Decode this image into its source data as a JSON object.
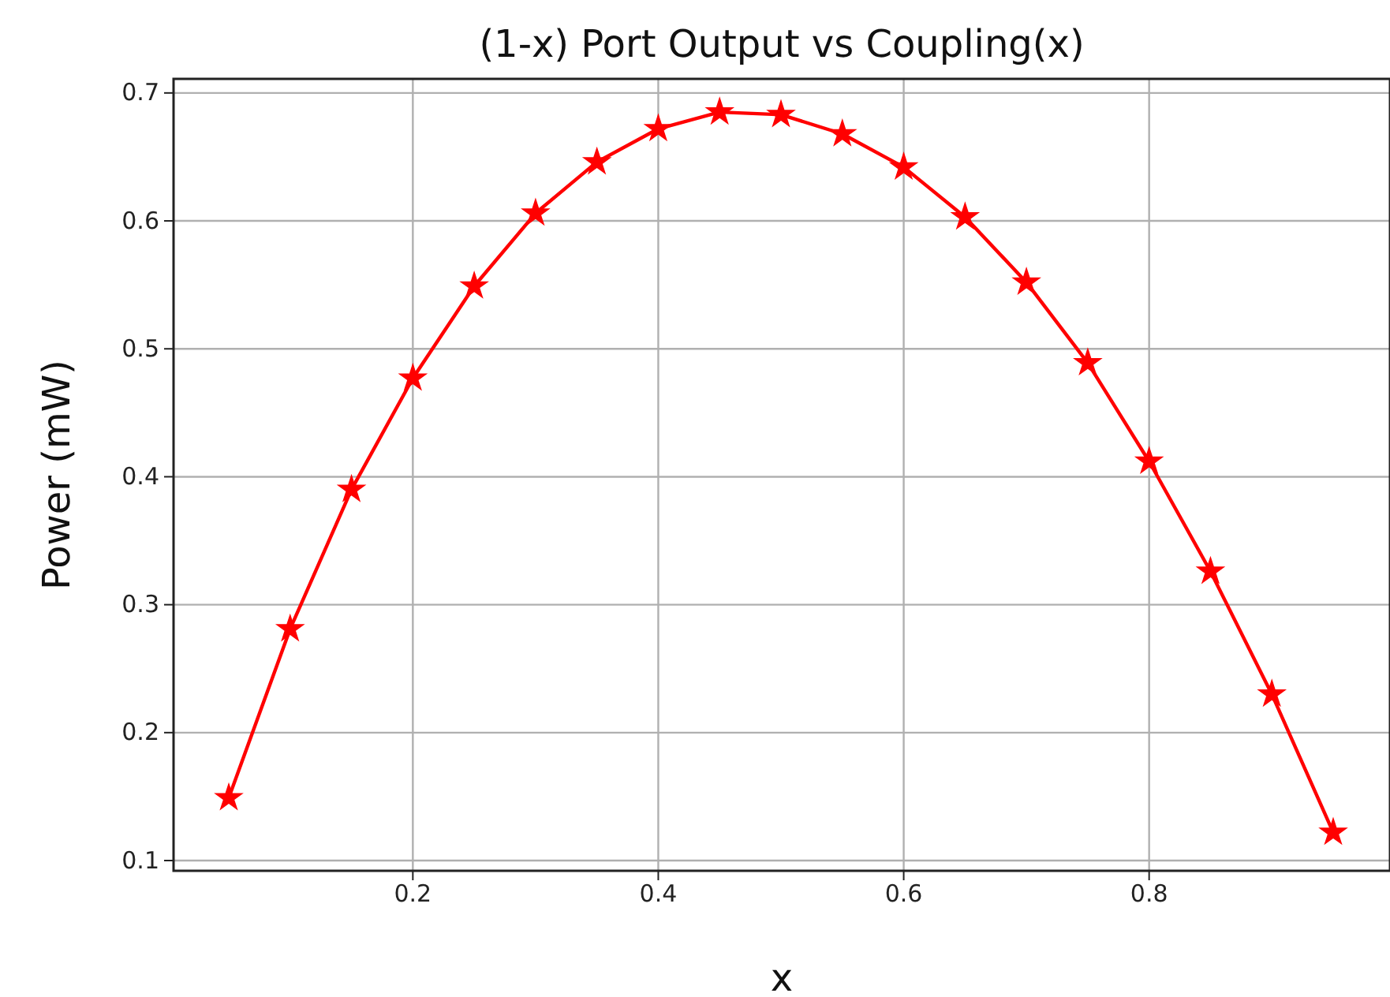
{
  "chart_data": {
    "type": "line",
    "title": "(1-x) Port Output vs Coupling(x)",
    "xlabel": "x",
    "ylabel": "Power (mW)",
    "x": [
      0.05,
      0.1,
      0.15,
      0.2,
      0.25,
      0.3,
      0.35,
      0.4,
      0.45,
      0.5,
      0.55,
      0.6,
      0.65,
      0.7,
      0.75,
      0.8,
      0.85,
      0.9,
      0.95
    ],
    "series": [
      {
        "color": "#ff0000",
        "values": [
          0.149,
          0.281,
          0.39,
          0.477,
          0.549,
          0.606,
          0.646,
          0.672,
          0.685,
          0.683,
          0.668,
          0.642,
          0.603,
          0.552,
          0.489,
          0.412,
          0.326,
          0.23,
          0.122
        ]
      }
    ],
    "xlim": [
      0.005,
      0.995
    ],
    "xticks": [
      0.2,
      0.4,
      0.6,
      0.8
    ],
    "ylim": [
      0.092,
      0.711
    ],
    "yticks": [
      0.1,
      0.2,
      0.3,
      0.4,
      0.5,
      0.6,
      0.7
    ],
    "grid": true,
    "marker": "star",
    "line_style": "solid"
  }
}
